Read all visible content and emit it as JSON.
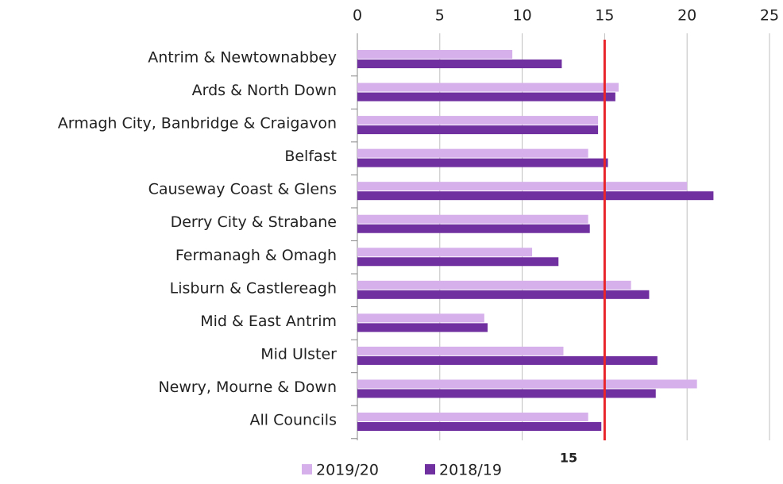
{
  "chart_data": {
    "type": "bar",
    "orientation": "horizontal",
    "categories": [
      "Antrim & Newtownabbey",
      "Ards & North Down",
      "Armagh City, Banbridge & Craigavon",
      "Belfast",
      "Causeway Coast & Glens",
      "Derry City & Strabane",
      "Fermanagh & Omagh",
      "Lisburn & Castlereagh",
      "Mid & East Antrim",
      "Mid Ulster",
      "Newry, Mourne & Down",
      "All Councils"
    ],
    "series": [
      {
        "name": "2019/20",
        "color": "#d5b0ea",
        "values": [
          9.4,
          15.85,
          14.6,
          14.0,
          20.0,
          14.0,
          10.6,
          16.6,
          7.7,
          12.5,
          20.6,
          14.0
        ]
      },
      {
        "name": "2018/19",
        "color": "#7030a0",
        "values": [
          12.4,
          15.65,
          14.6,
          15.2,
          21.6,
          14.1,
          12.2,
          17.7,
          7.9,
          18.2,
          18.1,
          14.8
        ]
      }
    ],
    "xlim": [
      0,
      25
    ],
    "xticks": [
      0,
      5,
      10,
      15,
      20,
      25
    ],
    "grid": true,
    "reference_line": 15,
    "reference_color": "#e8262b",
    "legend": "bottom"
  }
}
